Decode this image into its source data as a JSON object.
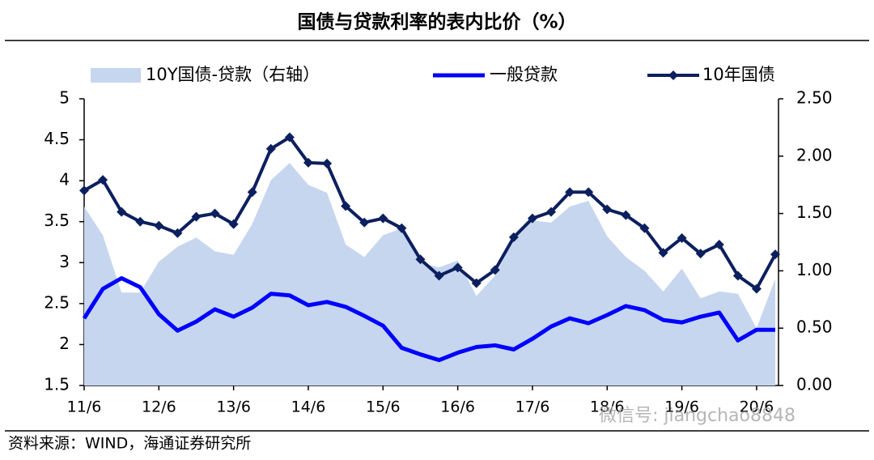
{
  "chart_data": {
    "type": "combo",
    "title": "国债与贷款利率的表内比价（%）",
    "categories": [
      "11/6",
      null,
      null,
      null,
      "12/6",
      null,
      null,
      null,
      "13/6",
      null,
      null,
      null,
      "14/6",
      null,
      null,
      null,
      "15/6",
      null,
      null,
      null,
      "16/6",
      null,
      null,
      null,
      "17/6",
      null,
      null,
      null,
      "18/6",
      null,
      null,
      null,
      "19/6",
      null,
      null,
      null,
      "20/6",
      null
    ],
    "series": [
      {
        "name": "10Y国债-贷款（右轴）",
        "type": "area",
        "axis": "y2",
        "color": "#c6d6ef",
        "values": [
          1.56,
          1.31,
          0.81,
          0.81,
          1.08,
          1.21,
          1.29,
          1.17,
          1.14,
          1.41,
          1.79,
          1.94,
          1.75,
          1.68,
          1.23,
          1.12,
          1.31,
          1.37,
          1.07,
          1.03,
          1.09,
          0.78,
          0.96,
          1.28,
          1.44,
          1.42,
          1.56,
          1.61,
          1.3,
          1.12,
          1.0,
          0.82,
          1.02,
          0.76,
          0.82,
          0.8,
          0.5,
          0.93
        ]
      },
      {
        "name": "一般贷款",
        "type": "line",
        "color": "#0000ff",
        "values": [
          2.32,
          2.68,
          2.81,
          2.7,
          2.37,
          2.17,
          2.28,
          2.43,
          2.34,
          2.45,
          2.62,
          2.6,
          2.48,
          2.52,
          2.46,
          2.35,
          2.23,
          1.96,
          1.88,
          1.81,
          1.9,
          1.97,
          1.99,
          1.94,
          2.07,
          2.22,
          2.32,
          2.26,
          2.36,
          2.47,
          2.42,
          2.3,
          2.27,
          2.34,
          2.39,
          2.05,
          2.18,
          2.18
        ]
      },
      {
        "name": "10年国债",
        "type": "line",
        "marker": "diamond",
        "color": "#0c1f5e",
        "values": [
          3.88,
          4.01,
          3.62,
          3.5,
          3.45,
          3.36,
          3.56,
          3.6,
          3.47,
          3.86,
          4.39,
          4.53,
          4.22,
          4.21,
          3.69,
          3.49,
          3.54,
          3.42,
          3.04,
          2.84,
          2.94,
          2.75,
          2.91,
          3.31,
          3.54,
          3.62,
          3.86,
          3.86,
          3.65,
          3.58,
          3.42,
          3.12,
          3.3,
          3.11,
          3.22,
          2.84,
          2.68,
          3.1
        ]
      }
    ],
    "ylim": [
      1.5,
      5
    ],
    "yticks": [
      1.5,
      2,
      2.5,
      3,
      3.5,
      4,
      4.5,
      5
    ],
    "y2lim": [
      0,
      2.5
    ],
    "y2ticks": [
      {
        "value": 0,
        "label": "0.00"
      },
      {
        "value": 0.5,
        "label": "0.50"
      },
      {
        "value": 1,
        "label": "1.00"
      },
      {
        "value": 1.5,
        "label": "1.50"
      },
      {
        "value": 2,
        "label": "2.00"
      },
      {
        "value": 2.5,
        "label": "2.50"
      }
    ],
    "legend": "top",
    "source": "资料来源：WIND，海通证券研究所",
    "watermark": "微信号: jiangchao8848"
  }
}
